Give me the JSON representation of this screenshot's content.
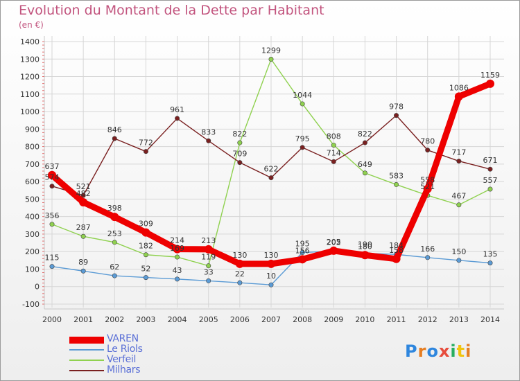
{
  "header": {
    "title": "Evolution du Montant de la Dette par Habitant",
    "unit": "(en €)"
  },
  "logo": "Proxiti",
  "chart_data": {
    "type": "line",
    "title": "Evolution du Montant de la Dette par Habitant",
    "subtitle": "(en €)",
    "x": [
      "2000",
      "2001",
      "2002",
      "2003",
      "2004",
      "2005",
      "2006",
      "2007",
      "2008",
      "2009",
      "2010",
      "2011",
      "2012",
      "2013",
      "2014"
    ],
    "yticks": [
      -100,
      0,
      100,
      200,
      300,
      400,
      500,
      600,
      700,
      800,
      900,
      1000,
      1100,
      1200,
      1300,
      1400
    ],
    "ylim": [
      -100,
      1400
    ],
    "grid": true,
    "legend_position": "bottom-left",
    "series": [
      {
        "name": "VAREN",
        "color": "#ee0000",
        "values": [
          637,
          482,
          398,
          309,
          214,
          213,
          130,
          130,
          156,
          205,
          180,
          158,
          558,
          1086,
          1159
        ]
      },
      {
        "name": "Le Riols",
        "color": "#5b9bd5",
        "values": [
          115,
          89,
          62,
          52,
          43,
          33,
          22,
          10,
          195,
          202,
          190,
          184,
          166,
          150,
          135
        ]
      },
      {
        "name": "Verfeil",
        "color": "#8fd14f",
        "values": [
          356,
          287,
          253,
          182,
          169,
          119,
          822,
          1299,
          1044,
          808,
          649,
          583,
          521,
          467,
          557
        ]
      },
      {
        "name": "Milhars",
        "color": "#7a2020",
        "values": [
          574,
          521,
          846,
          772,
          961,
          833,
          709,
          622,
          795,
          714,
          822,
          978,
          780,
          717,
          671
        ]
      }
    ]
  }
}
